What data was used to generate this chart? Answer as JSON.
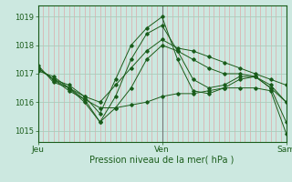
{
  "title": "Pression niveau de la mer( hPa )",
  "bg_color": "#cce8e0",
  "plot_bg_color": "#cce8e0",
  "line_color": "#1a5c1a",
  "grid_color_h": "#aaccbb",
  "grid_color_v": "#ddaaaa",
  "vline_color": "#777777",
  "ylabel_ticks": [
    1015,
    1016,
    1017,
    1018,
    1019
  ],
  "ylim": [
    1014.6,
    1019.4
  ],
  "xlim": [
    0,
    48
  ],
  "xtick_positions": [
    0,
    24,
    48
  ],
  "xtick_labels": [
    "Jeu",
    "Ven",
    "Sam"
  ],
  "series": [
    {
      "x": [
        0,
        3,
        6,
        9,
        12,
        15,
        18,
        21,
        24,
        27,
        30,
        33,
        36,
        39,
        42,
        45,
        48
      ],
      "y": [
        1017.1,
        1016.9,
        1016.5,
        1016.1,
        1015.8,
        1015.8,
        1015.9,
        1016.0,
        1016.2,
        1016.3,
        1016.3,
        1016.4,
        1016.5,
        1016.5,
        1016.5,
        1016.4,
        1014.9
      ]
    },
    {
      "x": [
        0,
        3,
        6,
        9,
        12,
        15,
        18,
        21,
        24,
        27,
        30,
        33,
        36,
        39,
        42,
        45,
        48
      ],
      "y": [
        1017.2,
        1016.8,
        1016.5,
        1016.0,
        1015.3,
        1015.8,
        1016.5,
        1017.5,
        1018.0,
        1017.8,
        1017.5,
        1017.2,
        1017.0,
        1017.0,
        1016.9,
        1016.5,
        1015.3
      ]
    },
    {
      "x": [
        0,
        3,
        6,
        9,
        12,
        15,
        18,
        21,
        24,
        27,
        30,
        33,
        36,
        39,
        42,
        45,
        48
      ],
      "y": [
        1017.2,
        1016.8,
        1016.4,
        1016.1,
        1015.3,
        1016.2,
        1017.5,
        1018.4,
        1018.7,
        1017.8,
        1016.8,
        1016.5,
        1016.6,
        1016.9,
        1016.9,
        1016.6,
        1016.0
      ]
    },
    {
      "x": [
        0,
        3,
        6,
        9,
        12,
        15,
        18,
        21,
        24,
        27,
        30,
        33,
        36,
        39,
        42,
        45,
        48
      ],
      "y": [
        1017.2,
        1016.8,
        1016.6,
        1016.2,
        1015.6,
        1016.8,
        1018.0,
        1018.6,
        1019.0,
        1017.5,
        1016.4,
        1016.3,
        1016.5,
        1016.8,
        1016.9,
        1016.5,
        1016.0
      ]
    },
    {
      "x": [
        0,
        3,
        6,
        9,
        12,
        15,
        18,
        21,
        24,
        27,
        30,
        33,
        36,
        39,
        42,
        45,
        48
      ],
      "y": [
        1017.3,
        1016.7,
        1016.5,
        1016.2,
        1016.0,
        1016.6,
        1017.2,
        1017.8,
        1018.2,
        1017.9,
        1017.8,
        1017.6,
        1017.4,
        1017.2,
        1017.0,
        1016.8,
        1016.6
      ]
    }
  ]
}
